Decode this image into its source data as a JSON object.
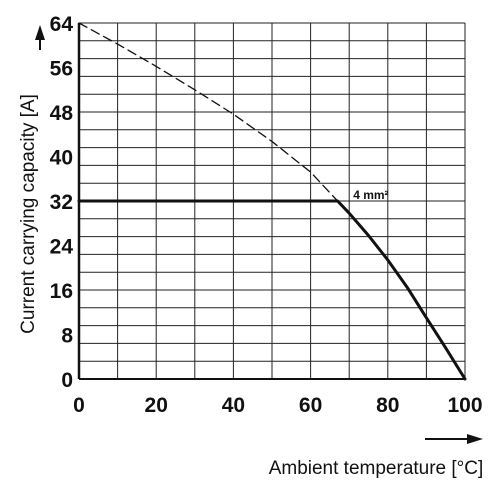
{
  "chart_data": {
    "type": "line",
    "xlabel": "Ambient temperature [°C]",
    "ylabel": "Current carrying capacity [A]",
    "xlim": [
      0,
      100
    ],
    "ylim": [
      0,
      64
    ],
    "x_ticks": [
      "0",
      "20",
      "40",
      "60",
      "80",
      "100"
    ],
    "y_ticks": [
      "0",
      "8",
      "16",
      "24",
      "32",
      "40",
      "48",
      "56",
      "64"
    ],
    "grid": true,
    "series": [
      {
        "name": "4 mm²",
        "style": "solid",
        "x": [
          0,
          67,
          70,
          75,
          80,
          85,
          90,
          95,
          100
        ],
        "y": [
          32,
          32,
          29.8,
          25.8,
          21.4,
          16.5,
          11,
          5.6,
          0
        ]
      },
      {
        "style": "dashed",
        "x": [
          0,
          10,
          20,
          30,
          40,
          50,
          60,
          67
        ],
        "y": [
          64,
          60.2,
          56.2,
          52,
          47.6,
          42.7,
          37.2,
          32
        ]
      }
    ],
    "annotations": [
      {
        "text": "4 mm²",
        "x": 70,
        "y": 32
      }
    ],
    "colors": {
      "line": "#111111",
      "grid": "#222222"
    }
  }
}
